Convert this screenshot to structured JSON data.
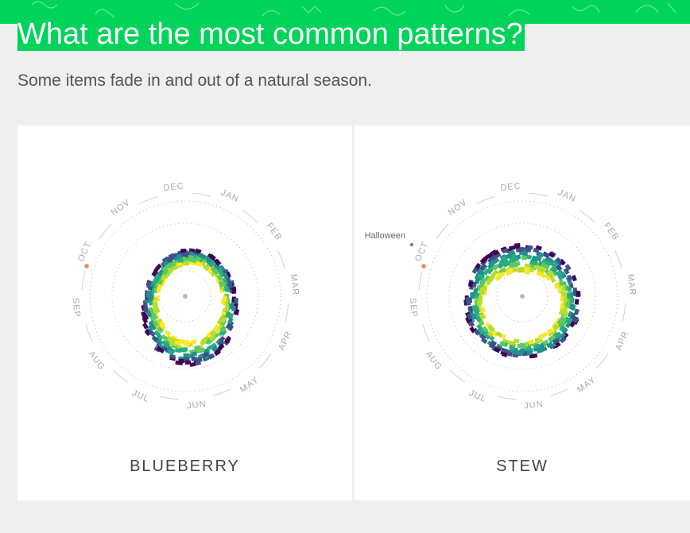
{
  "header": {
    "title": "What are the most common patterns?",
    "subtitle": "Some items fade in and out of a natural season."
  },
  "colors": {
    "brand_green": "#00d35a",
    "marker_orange": "#f08a4b",
    "palette": [
      "#440154",
      "#3b528b",
      "#21918c",
      "#27ad81",
      "#5ec962",
      "#b5de2b",
      "#fde725"
    ]
  },
  "months": [
    "JAN",
    "FEB",
    "MAR",
    "APR",
    "MAY",
    "JUN",
    "JUL",
    "AUG",
    "SEP",
    "OCT",
    "NOV",
    "DEC"
  ],
  "chart_data": [
    {
      "type": "radial",
      "label": "BLUEBERRY",
      "annotations": [],
      "peak_months": [
        "JUN",
        "JUL",
        "AUG"
      ]
    },
    {
      "type": "radial",
      "label": "STEW",
      "annotations": [
        {
          "text": "Halloween",
          "month": "OCT"
        }
      ],
      "peak_months": [
        "NOV",
        "DEC",
        "JAN",
        "FEB",
        "MAR"
      ]
    }
  ]
}
